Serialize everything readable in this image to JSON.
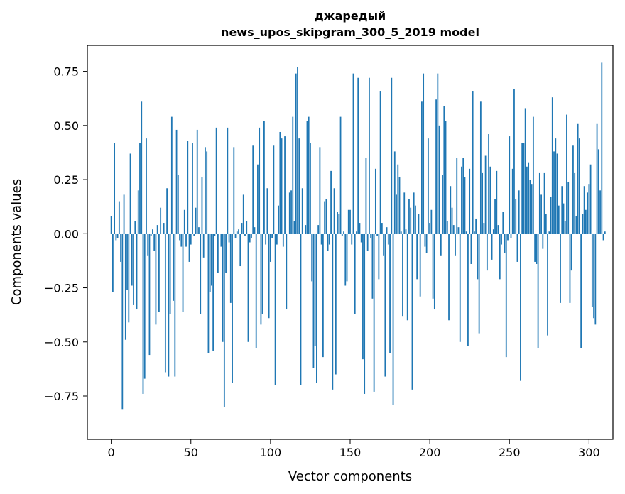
{
  "chart_data": {
    "type": "bar",
    "title_line1": "джаредый",
    "title_line2": "news_upos_skipgram_300_5_2019 model",
    "xlabel": "Vector components",
    "ylabel": "Components values",
    "xlim": [
      -15,
      315
    ],
    "ylim": [
      -0.95,
      0.87
    ],
    "xticks": [
      0,
      50,
      100,
      150,
      200,
      250,
      300
    ],
    "xtick_labels": [
      "0",
      "50",
      "100",
      "150",
      "200",
      "250",
      "300"
    ],
    "yticks": [
      -0.75,
      -0.5,
      -0.25,
      0.0,
      0.25,
      0.5,
      0.75
    ],
    "ytick_labels": [
      "−0.75",
      "−0.50",
      "−0.25",
      "0.00",
      "0.25",
      "0.50",
      "0.75"
    ],
    "bar_color": "#1f77b4",
    "grid": false,
    "values": [
      0.08,
      -0.27,
      0.42,
      -0.03,
      -0.02,
      0.15,
      -0.13,
      -0.81,
      0.18,
      -0.49,
      -0.26,
      -0.41,
      0.37,
      -0.24,
      -0.33,
      0.06,
      -0.35,
      0.2,
      0.42,
      0.61,
      -0.74,
      -0.67,
      0.44,
      -0.1,
      -0.56,
      -0.01,
      0.02,
      -0.08,
      -0.42,
      0.04,
      -0.36,
      0.12,
      0.0,
      0.05,
      -0.64,
      0.21,
      -0.66,
      -0.37,
      0.54,
      -0.31,
      -0.66,
      0.48,
      0.27,
      -0.03,
      -0.06,
      -0.36,
      0.11,
      -0.06,
      0.43,
      -0.13,
      -0.05,
      0.42,
      -0.01,
      0.12,
      0.48,
      0.03,
      -0.37,
      0.26,
      -0.11,
      0.4,
      0.38,
      -0.55,
      -0.27,
      -0.24,
      -0.54,
      -0.01,
      0.49,
      -0.18,
      0.0,
      -0.06,
      -0.5,
      -0.8,
      -0.18,
      0.49,
      -0.04,
      -0.32,
      -0.69,
      0.4,
      -0.02,
      0.01,
      0.02,
      -0.15,
      0.05,
      0.18,
      -0.01,
      0.06,
      -0.5,
      -0.04,
      -0.02,
      0.41,
      0.03,
      -0.53,
      0.32,
      0.49,
      -0.42,
      -0.37,
      0.52,
      -0.05,
      0.21,
      -0.39,
      -0.13,
      -0.02,
      0.41,
      -0.7,
      -0.05,
      0.13,
      0.47,
      0.44,
      -0.06,
      0.45,
      -0.35,
      0.0,
      0.19,
      0.2,
      0.54,
      0.06,
      0.74,
      0.77,
      0.44,
      -0.7,
      0.21,
      0.0,
      0.04,
      0.52,
      0.54,
      0.42,
      -0.22,
      -0.62,
      -0.52,
      -0.69,
      0.04,
      0.4,
      -0.05,
      -0.57,
      0.15,
      0.16,
      -0.08,
      -0.05,
      0.29,
      -0.72,
      0.21,
      -0.65,
      0.1,
      0.09,
      0.54,
      -0.01,
      0.01,
      -0.24,
      -0.22,
      0.11,
      0.11,
      -0.05,
      0.74,
      -0.37,
      0.01,
      0.72,
      0.05,
      -0.04,
      -0.58,
      -0.74,
      0.35,
      -0.08,
      0.72,
      -0.02,
      -0.3,
      -0.73,
      0.3,
      -0.01,
      -0.21,
      0.66,
      0.05,
      -0.1,
      -0.66,
      0.03,
      -0.05,
      -0.55,
      0.72,
      -0.79,
      0.38,
      0.18,
      0.32,
      0.26,
      0.01,
      -0.38,
      0.19,
      0.02,
      -0.4,
      0.16,
      0.12,
      -0.72,
      0.19,
      0.13,
      -0.21,
      0.09,
      -0.29,
      0.61,
      0.74,
      -0.06,
      -0.09,
      0.44,
      0.05,
      0.11,
      -0.3,
      -0.35,
      0.62,
      0.74,
      0.5,
      -0.1,
      0.27,
      0.59,
      0.52,
      0.06,
      -0.4,
      0.22,
      0.12,
      0.04,
      -0.1,
      0.35,
      0.03,
      -0.5,
      0.31,
      0.35,
      0.26,
      0.01,
      -0.52,
      0.3,
      -0.14,
      0.66,
      0.01,
      0.07,
      -0.21,
      -0.46,
      0.61,
      0.28,
      0.05,
      0.36,
      -0.17,
      0.46,
      0.31,
      -0.12,
      0.02,
      0.16,
      0.29,
      0.04,
      -0.21,
      -0.05,
      0.1,
      -0.09,
      -0.57,
      -0.03,
      0.45,
      -0.02,
      0.3,
      0.67,
      0.16,
      -0.13,
      0.2,
      -0.68,
      0.42,
      0.42,
      0.58,
      0.31,
      0.33,
      0.25,
      0.23,
      0.54,
      -0.13,
      -0.14,
      -0.53,
      0.28,
      0.18,
      -0.07,
      0.28,
      0.09,
      -0.47,
      0.01,
      0.17,
      0.63,
      0.38,
      0.44,
      0.37,
      0.13,
      -0.32,
      0.22,
      0.14,
      0.06,
      0.55,
      0.24,
      -0.32,
      -0.17,
      0.41,
      0.28,
      0.08,
      0.51,
      0.44,
      -0.53,
      0.09,
      0.22,
      0.11,
      0.19,
      0.23,
      0.32,
      -0.34,
      -0.39,
      -0.42,
      0.51,
      0.39,
      0.2,
      0.79,
      -0.03,
      0.01,
      0.0
    ]
  }
}
